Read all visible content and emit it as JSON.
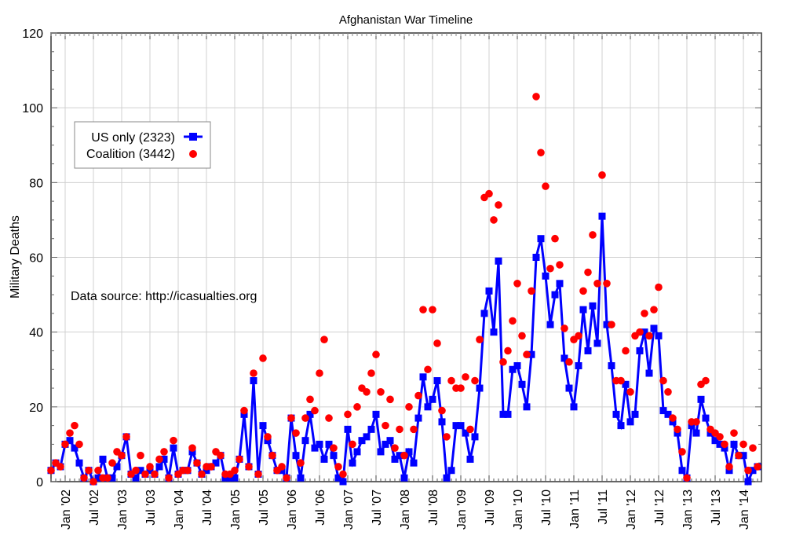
{
  "chart_data": {
    "type": "line",
    "title": "Afghanistan War Timeline",
    "xlabel": "",
    "ylabel": "Military Deaths",
    "ylim": [
      0,
      120
    ],
    "yticks": [
      0,
      20,
      40,
      60,
      80,
      100,
      120
    ],
    "grid": true,
    "legend_position": "top-left",
    "annotation": "Data source: http://icasualties.org",
    "start_month": "2001-10",
    "x_tick_labels": [
      "Jan '02",
      "Jul '02",
      "Jan '03",
      "Jul '03",
      "Jan '04",
      "Jul '04",
      "Jan '05",
      "Jul '05",
      "Jan '06",
      "Jul '06",
      "Jan '07",
      "Jul '07",
      "Jan '08",
      "Jul '08",
      "Jan '09",
      "Jul '09",
      "Jan '10",
      "Jul '10",
      "Jan '11",
      "Jul '11",
      "Jan '12",
      "Jul '12",
      "Jan '13",
      "Jul '13",
      "Jan '14"
    ],
    "series": [
      {
        "name": "US only (2323)",
        "style": "line-square",
        "color": "#0000ff",
        "values": [
          3,
          5,
          4,
          10,
          11,
          9,
          5,
          1,
          3,
          0,
          1,
          6,
          1,
          1,
          4,
          7,
          12,
          2,
          1,
          3,
          2,
          3,
          2,
          4,
          6,
          1,
          9,
          2,
          3,
          3,
          8,
          5,
          2,
          3,
          4,
          5,
          7,
          1,
          1,
          1,
          6,
          18,
          4,
          27,
          2,
          15,
          11,
          7,
          3,
          3,
          1,
          17,
          7,
          1,
          11,
          18,
          9,
          10,
          6,
          10,
          7,
          1,
          0,
          14,
          5,
          8,
          11,
          12,
          14,
          18,
          8,
          10,
          11,
          6,
          7,
          1,
          8,
          5,
          17,
          28,
          20,
          22,
          27,
          16,
          1,
          3,
          15,
          15,
          13,
          6,
          12,
          25,
          45,
          51,
          40,
          59,
          18,
          18,
          30,
          31,
          26,
          20,
          34,
          60,
          65,
          55,
          42,
          50,
          53,
          33,
          25,
          20,
          31,
          46,
          35,
          47,
          37,
          71,
          42,
          31,
          18,
          15,
          26,
          16,
          18,
          35,
          40,
          29,
          41,
          39,
          19,
          18,
          16,
          13,
          3,
          1,
          15,
          13,
          22,
          17,
          13,
          11,
          10,
          9,
          3,
          10,
          7,
          7,
          0,
          3,
          4
        ]
      },
      {
        "name": "Coalition (3442)",
        "style": "points-circle",
        "color": "#ff0000",
        "values": [
          3,
          5,
          4,
          10,
          13,
          15,
          10,
          1,
          3,
          0,
          3,
          1,
          1,
          5,
          8,
          7,
          12,
          2,
          3,
          7,
          2,
          4,
          2,
          6,
          8,
          1,
          11,
          2,
          3,
          3,
          9,
          5,
          2,
          4,
          4,
          8,
          7,
          2,
          2,
          3,
          6,
          19,
          4,
          29,
          2,
          33,
          12,
          7,
          3,
          4,
          1,
          17,
          13,
          5,
          17,
          22,
          19,
          29,
          38,
          17,
          9,
          4,
          2,
          18,
          10,
          20,
          25,
          24,
          29,
          34,
          24,
          15,
          22,
          9,
          14,
          7,
          20,
          14,
          23,
          46,
          30,
          46,
          37,
          19,
          12,
          27,
          25,
          25,
          28,
          14,
          27,
          38,
          76,
          77,
          70,
          74,
          32,
          35,
          43,
          53,
          39,
          34,
          51,
          103,
          88,
          79,
          57,
          65,
          58,
          41,
          32,
          38,
          39,
          51,
          56,
          66,
          53,
          82,
          53,
          42,
          27,
          27,
          35,
          24,
          39,
          40,
          45,
          39,
          46,
          52,
          27,
          24,
          17,
          14,
          8,
          1,
          16,
          16,
          26,
          27,
          14,
          13,
          12,
          10,
          4,
          13,
          7,
          10,
          3,
          9,
          4
        ]
      }
    ]
  }
}
